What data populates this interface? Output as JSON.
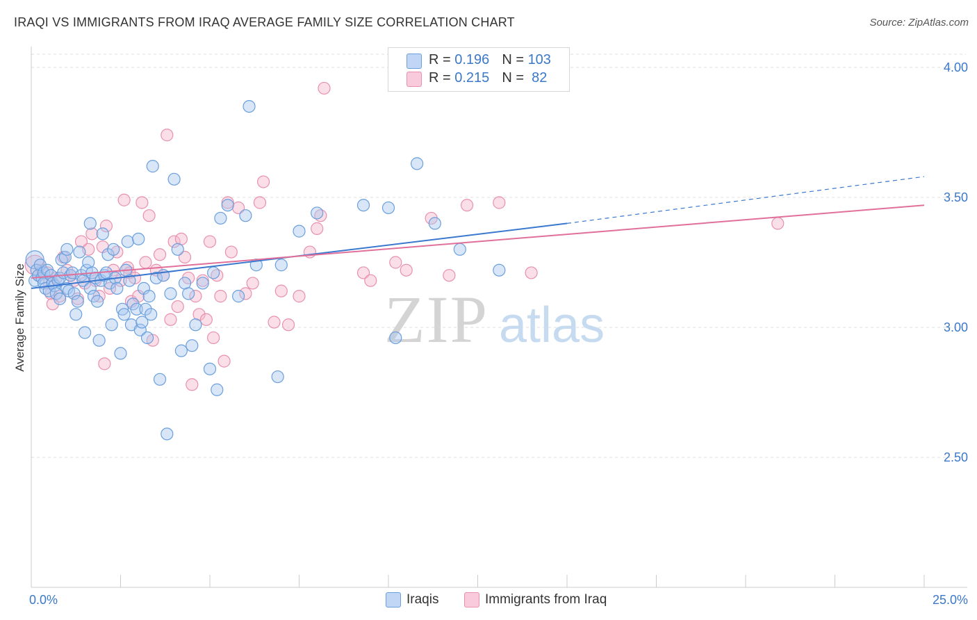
{
  "title": "IRAQI VS IMMIGRANTS FROM IRAQ AVERAGE FAMILY SIZE CORRELATION CHART",
  "source": "Source: ZipAtlas.com",
  "watermark": {
    "zip": "ZIP",
    "atlas": "atlas"
  },
  "colors": {
    "blue_fill": "#a9c8f0",
    "blue_stroke": "#6a9fdd",
    "blue_line": "#3a78d0",
    "pink_fill": "#f5b9cd",
    "pink_stroke": "#e890ae",
    "pink_line": "#e0709a",
    "axis_label": "#3b78c9",
    "grid": "#dddddd"
  },
  "legend": {
    "rows": [
      {
        "r_label": "R = ",
        "r_value": "0.196",
        "n_label": "N = ",
        "n_value": "103"
      },
      {
        "r_label": "R = ",
        "r_value": "0.215",
        "n_label": "N = ",
        "n_value": " 82"
      }
    ]
  },
  "bottom_legend": [
    {
      "label": "Iraqis"
    },
    {
      "label": "Immigrants from Iraq"
    }
  ],
  "chart_data": {
    "type": "scatter",
    "title": "IRAQI VS IMMIGRANTS FROM IRAQ AVERAGE FAMILY SIZE CORRELATION CHART",
    "xlabel": "",
    "ylabel": "Average Family Size",
    "xlim": [
      0,
      25
    ],
    "ylim": [
      2.0,
      4.08
    ],
    "x_tick_labels": [
      {
        "value": 0,
        "label": "0.0%"
      },
      {
        "value": 25,
        "label": "25.0%"
      }
    ],
    "y_tick_labels": [
      {
        "value": 2.5,
        "label": "2.50"
      },
      {
        "value": 3.0,
        "label": "3.00"
      },
      {
        "value": 3.5,
        "label": "3.50"
      },
      {
        "value": 4.0,
        "label": "4.00"
      }
    ],
    "x_minor_ticks": [
      2.5,
      5,
      7.5,
      10,
      12.5,
      15,
      17.5,
      20,
      22.5,
      25
    ],
    "series": [
      {
        "name": "Iraqis",
        "r": 0.196,
        "n": 103,
        "trend": {
          "x0": 0,
          "y0": 3.15,
          "x1": 15,
          "y1": 3.4,
          "dashed_to_x": 25,
          "dashed_to_y": 3.58
        },
        "points": [
          [
            0.1,
            3.26
          ],
          [
            0.1,
            3.18
          ],
          [
            0.15,
            3.22
          ],
          [
            0.2,
            3.2
          ],
          [
            0.25,
            3.24
          ],
          [
            0.3,
            3.19
          ],
          [
            0.35,
            3.21
          ],
          [
            0.35,
            3.17
          ],
          [
            0.4,
            3.15
          ],
          [
            0.45,
            3.22
          ],
          [
            0.5,
            3.14
          ],
          [
            0.55,
            3.2
          ],
          [
            0.6,
            3.17
          ],
          [
            0.65,
            3.16
          ],
          [
            0.7,
            3.13
          ],
          [
            0.75,
            3.18
          ],
          [
            0.8,
            3.19
          ],
          [
            0.8,
            3.11
          ],
          [
            0.85,
            3.26
          ],
          [
            0.9,
            3.21
          ],
          [
            0.95,
            3.27
          ],
          [
            1.0,
            3.3
          ],
          [
            1.0,
            3.15
          ],
          [
            1.05,
            3.14
          ],
          [
            1.1,
            3.2
          ],
          [
            1.15,
            3.21
          ],
          [
            1.2,
            3.13
          ],
          [
            1.25,
            3.05
          ],
          [
            1.3,
            3.1
          ],
          [
            1.35,
            3.29
          ],
          [
            1.4,
            3.2
          ],
          [
            1.45,
            3.18
          ],
          [
            1.5,
            2.98
          ],
          [
            1.55,
            3.22
          ],
          [
            1.6,
            3.25
          ],
          [
            1.65,
            3.15
          ],
          [
            1.7,
            3.21
          ],
          [
            1.75,
            3.12
          ],
          [
            1.8,
            3.19
          ],
          [
            1.85,
            3.1
          ],
          [
            1.9,
            2.95
          ],
          [
            1.95,
            3.18
          ],
          [
            2.0,
            3.36
          ],
          [
            2.05,
            3.2
          ],
          [
            2.1,
            3.21
          ],
          [
            2.15,
            3.28
          ],
          [
            2.2,
            3.17
          ],
          [
            2.25,
            3.01
          ],
          [
            2.3,
            3.3
          ],
          [
            2.35,
            3.19
          ],
          [
            2.4,
            3.15
          ],
          [
            2.5,
            2.9
          ],
          [
            2.55,
            3.07
          ],
          [
            2.6,
            3.05
          ],
          [
            2.65,
            3.22
          ],
          [
            2.7,
            3.33
          ],
          [
            2.75,
            3.18
          ],
          [
            2.8,
            3.01
          ],
          [
            2.85,
            3.09
          ],
          [
            2.95,
            3.07
          ],
          [
            3.0,
            3.34
          ],
          [
            3.05,
            2.99
          ],
          [
            3.1,
            3.02
          ],
          [
            3.15,
            3.15
          ],
          [
            3.2,
            3.07
          ],
          [
            3.25,
            2.96
          ],
          [
            3.3,
            3.12
          ],
          [
            3.35,
            3.05
          ],
          [
            3.4,
            3.62
          ],
          [
            3.5,
            3.19
          ],
          [
            3.6,
            2.8
          ],
          [
            3.7,
            3.2
          ],
          [
            3.8,
            2.59
          ],
          [
            3.9,
            3.13
          ],
          [
            4.1,
            3.3
          ],
          [
            4.2,
            2.91
          ],
          [
            4.3,
            3.17
          ],
          [
            4.4,
            3.13
          ],
          [
            4.5,
            2.93
          ],
          [
            4.6,
            3.01
          ],
          [
            4.8,
            3.17
          ],
          [
            5.0,
            2.84
          ],
          [
            5.1,
            3.21
          ],
          [
            5.2,
            2.76
          ],
          [
            5.3,
            3.42
          ],
          [
            5.5,
            3.47
          ],
          [
            5.8,
            3.12
          ],
          [
            6.0,
            3.43
          ],
          [
            6.1,
            3.85
          ],
          [
            6.3,
            3.24
          ],
          [
            6.9,
            2.81
          ],
          [
            7.0,
            3.24
          ],
          [
            7.5,
            3.37
          ],
          [
            8.0,
            3.44
          ],
          [
            9.3,
            3.47
          ],
          [
            10.0,
            3.46
          ],
          [
            10.2,
            2.96
          ],
          [
            10.8,
            3.63
          ],
          [
            11.3,
            3.4
          ],
          [
            12.0,
            3.3
          ],
          [
            13.1,
            3.22
          ],
          [
            4.0,
            3.57
          ],
          [
            1.65,
            3.4
          ]
        ]
      },
      {
        "name": "Immigrants from Iraq",
        "r": 0.215,
        "n": 82,
        "trend": {
          "x0": 0,
          "y0": 3.19,
          "x1": 25,
          "y1": 3.47
        },
        "points": [
          [
            0.1,
            3.24
          ],
          [
            0.2,
            3.2
          ],
          [
            0.3,
            3.22
          ],
          [
            0.45,
            3.21
          ],
          [
            0.5,
            3.17
          ],
          [
            0.55,
            3.13
          ],
          [
            0.6,
            3.09
          ],
          [
            0.7,
            3.19
          ],
          [
            0.8,
            3.12
          ],
          [
            0.9,
            3.27
          ],
          [
            1.0,
            3.22
          ],
          [
            1.1,
            3.2
          ],
          [
            1.2,
            3.18
          ],
          [
            1.3,
            3.11
          ],
          [
            1.4,
            3.33
          ],
          [
            1.5,
            3.17
          ],
          [
            1.6,
            3.3
          ],
          [
            1.7,
            3.36
          ],
          [
            1.8,
            3.18
          ],
          [
            1.9,
            3.12
          ],
          [
            2.0,
            3.31
          ],
          [
            2.05,
            2.86
          ],
          [
            2.1,
            3.39
          ],
          [
            2.2,
            3.15
          ],
          [
            2.3,
            3.22
          ],
          [
            2.4,
            3.29
          ],
          [
            2.5,
            3.18
          ],
          [
            2.6,
            3.49
          ],
          [
            2.7,
            3.23
          ],
          [
            2.75,
            3.21
          ],
          [
            2.8,
            3.1
          ],
          [
            2.9,
            3.19
          ],
          [
            3.0,
            3.12
          ],
          [
            3.1,
            3.48
          ],
          [
            3.2,
            3.25
          ],
          [
            3.3,
            3.43
          ],
          [
            3.4,
            2.95
          ],
          [
            3.5,
            3.22
          ],
          [
            3.6,
            3.28
          ],
          [
            3.7,
            3.2
          ],
          [
            3.8,
            3.74
          ],
          [
            3.9,
            3.03
          ],
          [
            4.0,
            3.33
          ],
          [
            4.1,
            3.08
          ],
          [
            4.2,
            3.34
          ],
          [
            4.3,
            3.27
          ],
          [
            4.4,
            3.19
          ],
          [
            4.5,
            2.78
          ],
          [
            4.6,
            3.12
          ],
          [
            4.7,
            3.05
          ],
          [
            4.8,
            3.18
          ],
          [
            4.9,
            3.03
          ],
          [
            5.0,
            3.33
          ],
          [
            5.1,
            2.96
          ],
          [
            5.2,
            3.2
          ],
          [
            5.3,
            3.12
          ],
          [
            5.4,
            2.87
          ],
          [
            5.5,
            3.48
          ],
          [
            5.6,
            3.29
          ],
          [
            5.8,
            3.46
          ],
          [
            6.0,
            3.13
          ],
          [
            6.2,
            3.17
          ],
          [
            6.4,
            3.48
          ],
          [
            6.5,
            3.56
          ],
          [
            6.8,
            3.02
          ],
          [
            7.0,
            3.14
          ],
          [
            7.2,
            3.01
          ],
          [
            7.5,
            3.12
          ],
          [
            7.8,
            3.29
          ],
          [
            8.0,
            3.38
          ],
          [
            8.1,
            3.43
          ],
          [
            8.2,
            3.92
          ],
          [
            9.3,
            3.21
          ],
          [
            9.5,
            3.18
          ],
          [
            10.2,
            3.25
          ],
          [
            10.5,
            3.22
          ],
          [
            11.2,
            3.42
          ],
          [
            11.7,
            3.2
          ],
          [
            12.2,
            3.47
          ],
          [
            13.1,
            3.48
          ],
          [
            14.0,
            3.21
          ],
          [
            20.9,
            3.4
          ]
        ]
      }
    ]
  }
}
